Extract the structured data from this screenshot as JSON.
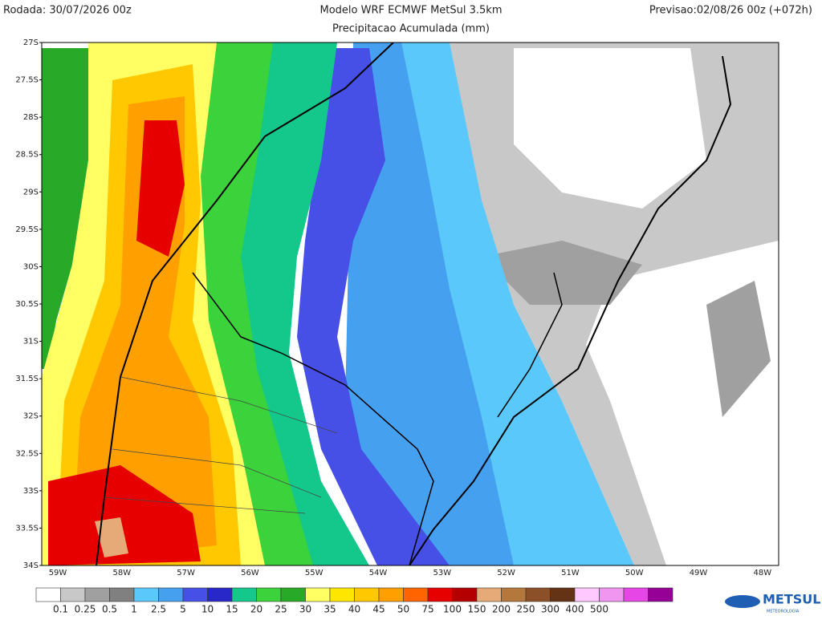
{
  "header": {
    "left": "Rodada: 30/07/2026 00z",
    "center": "Modelo WRF ECMWF MetSul 3.5km",
    "right": "Previsao:02/08/26 00z (+072h)",
    "subtitle": "Precipitacao Acumulada (mm)"
  },
  "map": {
    "lat_labels": [
      "27S",
      "27.5S",
      "28S",
      "28.5S",
      "29S",
      "29.5S",
      "30S",
      "30.5S",
      "31S",
      "31.5S",
      "32S",
      "32.5S",
      "33S",
      "33.5S",
      "34S"
    ],
    "lon_labels": [
      "59W",
      "58W",
      "57W",
      "56W",
      "55W",
      "54W",
      "53W",
      "52W",
      "51W",
      "50W",
      "49W",
      "48W"
    ]
  },
  "colorbar": {
    "labels": [
      "0.1",
      "0.25",
      "0.5",
      "1",
      "2.5",
      "5",
      "10",
      "15",
      "20",
      "25",
      "30",
      "35",
      "40",
      "45",
      "50",
      "75",
      "100",
      "150",
      "200",
      "250",
      "300",
      "400",
      "500"
    ],
    "colors": [
      "#ffffff",
      "#c8c8c8",
      "#a0a0a0",
      "#808080",
      "#5ac8fa",
      "#46a0f0",
      "#4650e6",
      "#2828c8",
      "#14c88c",
      "#3cd23c",
      "#28aa28",
      "#ffff64",
      "#ffe600",
      "#ffc800",
      "#ffa000",
      "#ff6400",
      "#e60000",
      "#b40000",
      "#e6aa78",
      "#b4783c",
      "#8c5028",
      "#643214",
      "#ffc8ff",
      "#f096f0",
      "#e646e6",
      "#960096"
    ]
  },
  "logo": {
    "name": "METSUL",
    "tagline": "METEOROLOGIA"
  }
}
